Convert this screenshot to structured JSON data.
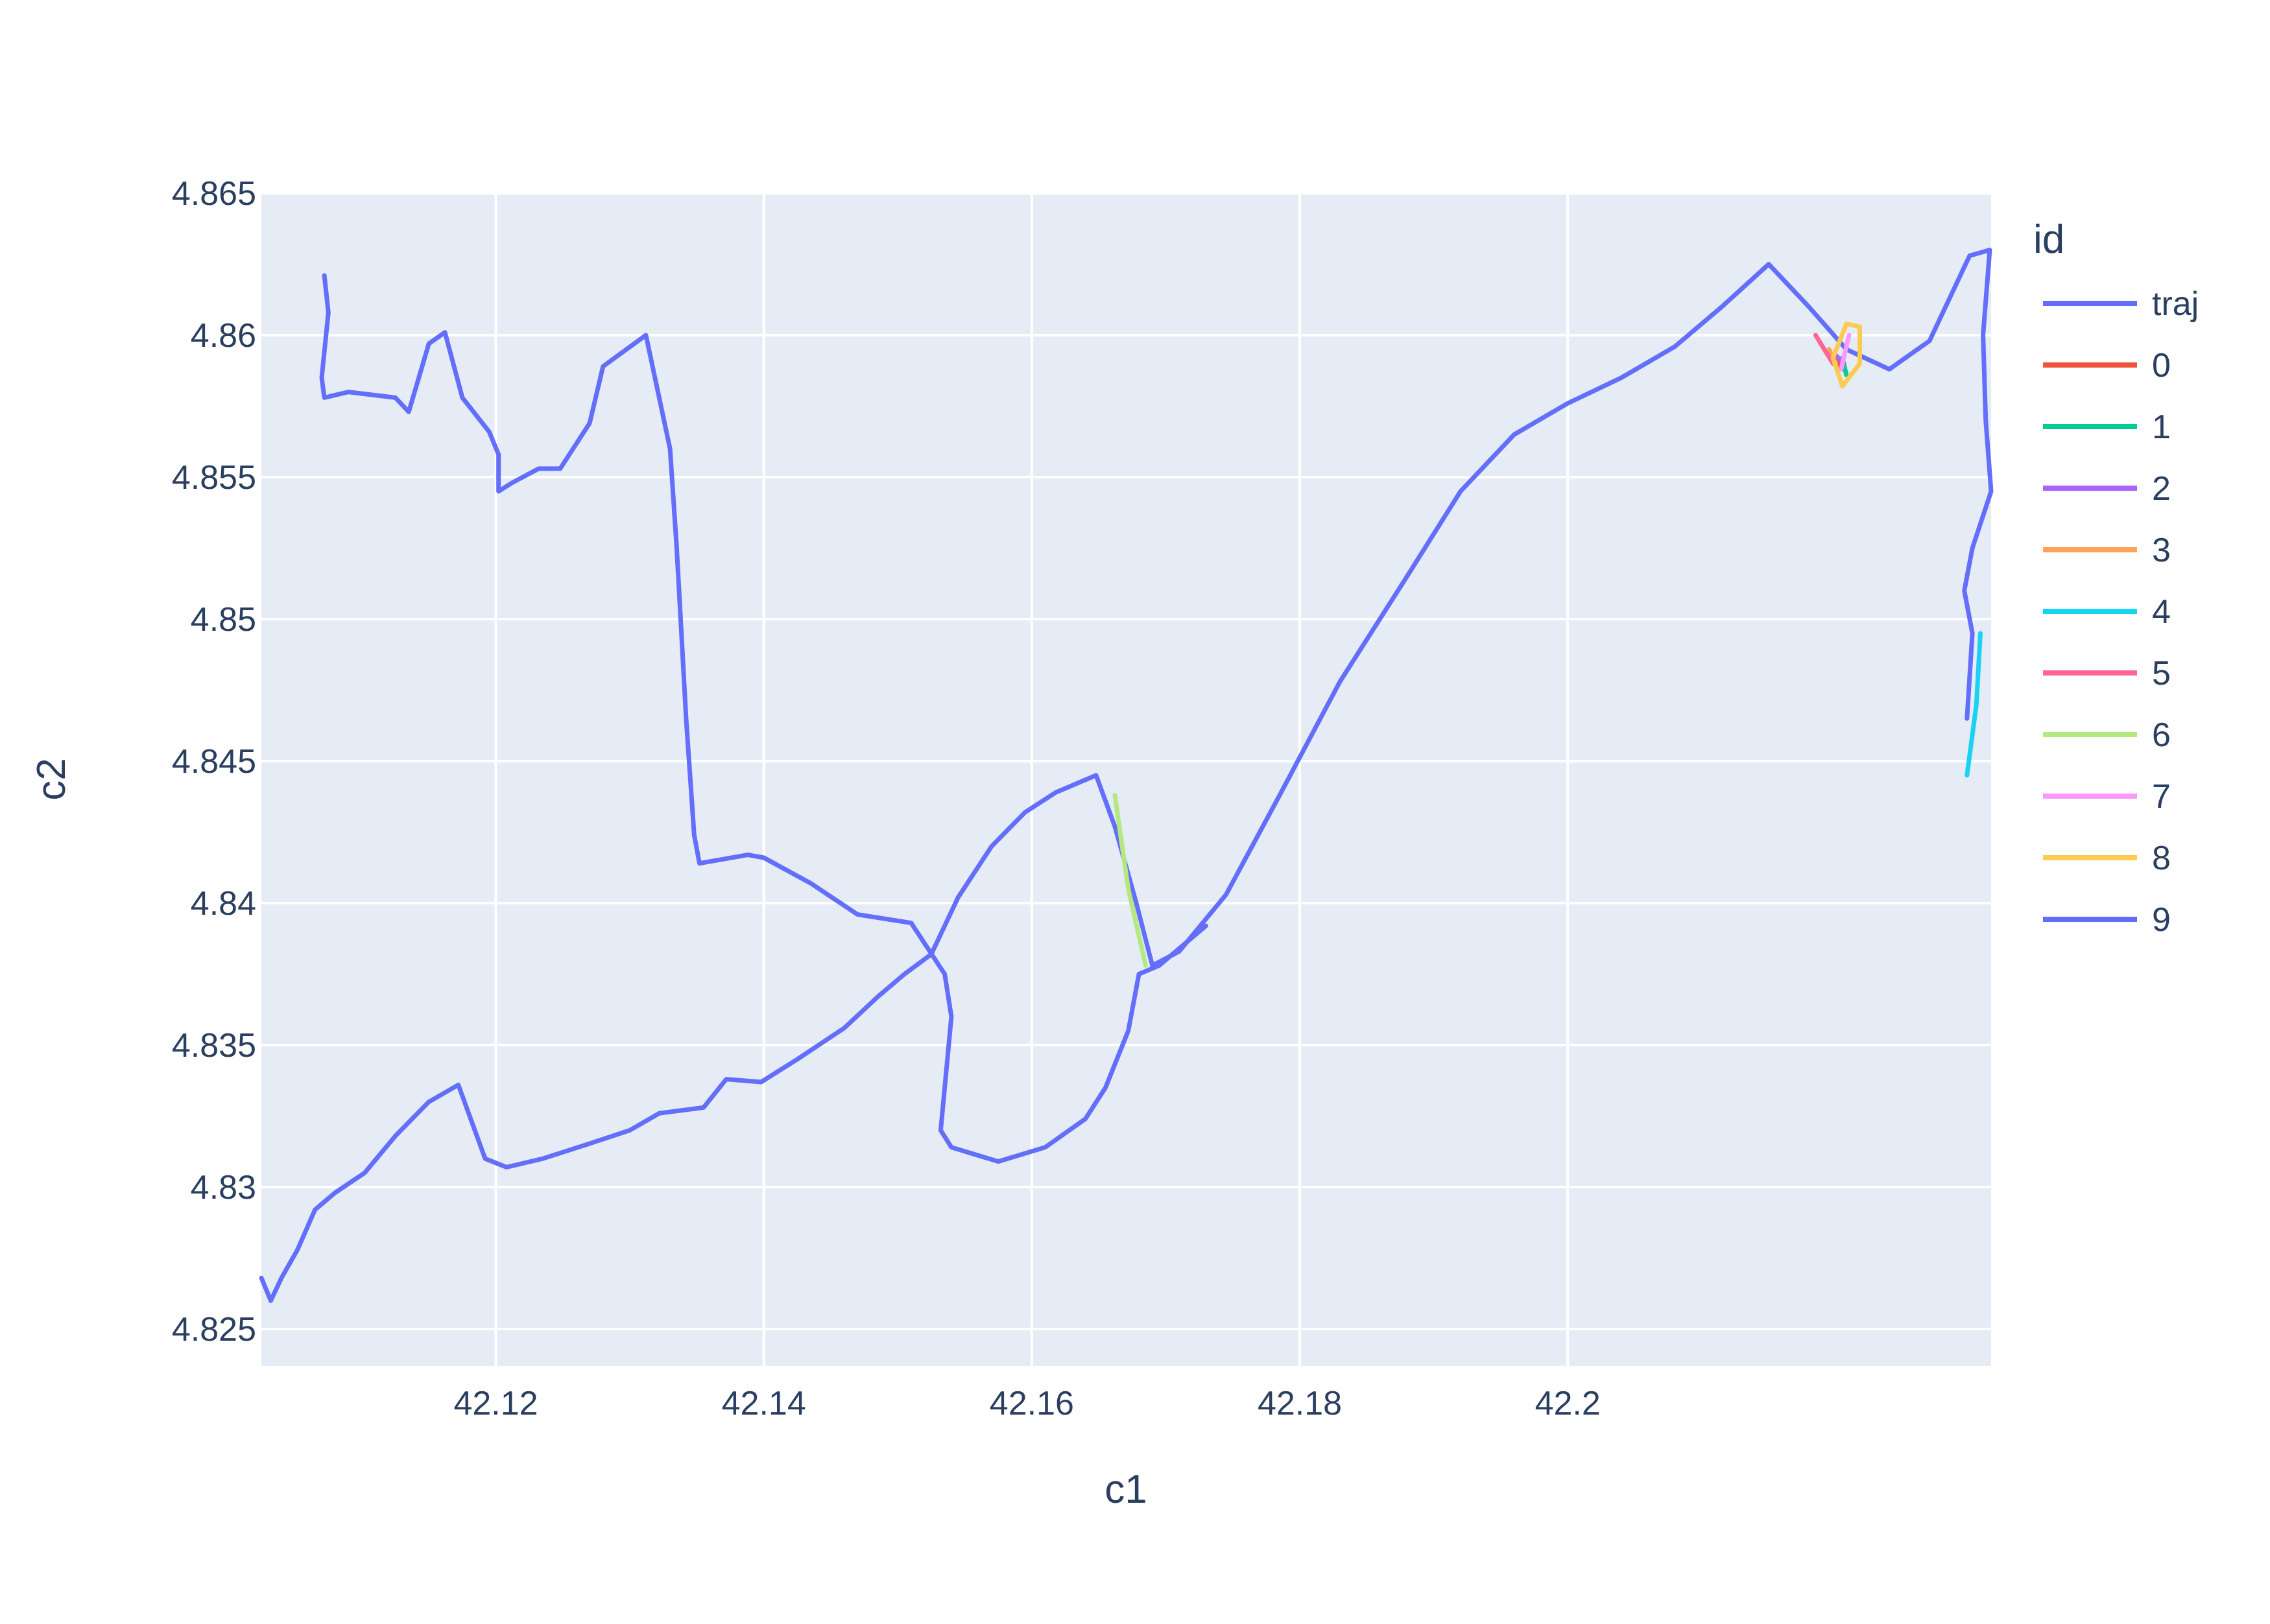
{
  "chart_data": {
    "type": "line",
    "title": "",
    "xlabel": "c1",
    "ylabel": "c2",
    "xlim": [
      42.1025,
      42.2316
    ],
    "ylim": [
      4.8237,
      4.865
    ],
    "x_ticks": [
      42.12,
      42.14,
      42.16,
      42.18,
      42.2
    ],
    "x_tick_labels": [
      "42.12",
      "42.14",
      "42.16",
      "42.18",
      "42.2"
    ],
    "y_ticks": [
      4.825,
      4.83,
      4.835,
      4.84,
      4.845,
      4.85,
      4.855,
      4.86,
      4.865
    ],
    "y_tick_labels": [
      "4.825",
      "4.83",
      "4.835",
      "4.84",
      "4.845",
      "4.85",
      "4.855",
      "4.86",
      "4.865"
    ],
    "grid": true,
    "legend_title": "id",
    "legend_position": "right",
    "colors": {
      "plot_bg": "#e5ecf6",
      "grid": "#ffffff",
      "text": "#2a3f5f"
    },
    "series": [
      {
        "name": "traj",
        "color": "#636efa",
        "points": [
          [
            42.1025,
            4.8268
          ],
          [
            42.1032,
            4.826
          ],
          [
            42.104,
            4.8268
          ],
          [
            42.1052,
            4.8278
          ],
          [
            42.1065,
            4.8292
          ],
          [
            42.108,
            4.8298
          ],
          [
            42.1102,
            4.8305
          ],
          [
            42.1125,
            4.8318
          ],
          [
            42.115,
            4.833
          ],
          [
            42.1172,
            4.8336
          ],
          [
            42.1192,
            4.831
          ],
          [
            42.1208,
            4.8307
          ],
          [
            42.1235,
            4.831
          ],
          [
            42.1268,
            4.8315
          ],
          [
            42.13,
            4.832
          ],
          [
            42.1322,
            4.8326
          ],
          [
            42.1355,
            4.8328
          ],
          [
            42.1372,
            4.8338
          ],
          [
            42.1398,
            4.8337
          ],
          [
            42.1425,
            4.8345
          ],
          [
            42.146,
            4.8356
          ],
          [
            42.1485,
            4.8367
          ],
          [
            42.1505,
            4.8375
          ],
          [
            42.1525,
            4.8382
          ],
          [
            42.1545,
            4.8402
          ],
          [
            42.157,
            4.842
          ],
          [
            42.1595,
            4.8432
          ],
          [
            42.1618,
            4.8439
          ],
          [
            42.1648,
            4.8445
          ],
          [
            42.1662,
            4.8427
          ],
          [
            42.1678,
            4.84
          ],
          [
            42.169,
            4.8378
          ],
          [
            42.171,
            4.8383
          ],
          [
            42.1745,
            4.8403
          ],
          [
            42.1785,
            4.8438
          ],
          [
            42.183,
            4.8478
          ],
          [
            42.188,
            4.8515
          ],
          [
            42.192,
            4.8545
          ],
          [
            42.196,
            4.8565
          ],
          [
            42.2,
            4.8576
          ],
          [
            42.204,
            4.8585
          ],
          [
            42.208,
            4.8596
          ],
          [
            42.2115,
            4.861
          ],
          [
            42.215,
            4.8625
          ],
          [
            42.218,
            4.861
          ],
          [
            42.2208,
            4.8595
          ],
          [
            42.224,
            4.8588
          ],
          [
            42.227,
            4.8598
          ],
          [
            42.23,
            4.8628
          ],
          [
            42.2315,
            4.863
          ],
          [
            42.231,
            4.86
          ],
          [
            42.2312,
            4.857
          ],
          [
            42.2316,
            4.8545
          ],
          [
            42.2302,
            4.8525
          ],
          [
            42.2296,
            4.851
          ],
          [
            42.2302,
            4.8495
          ],
          [
            42.2298,
            4.8465
          ]
        ]
      },
      {
        "name": "0",
        "color": "#ef553b",
        "points": [
          [
            42.2195,
            4.8594
          ],
          [
            42.2205,
            4.8588
          ]
        ]
      },
      {
        "name": "1",
        "color": "#00cc96",
        "points": [
          [
            42.2205,
            4.8592
          ],
          [
            42.2208,
            4.8586
          ]
        ]
      },
      {
        "name": "2",
        "color": "#ab63fa",
        "points": [
          [
            42.22,
            4.8593
          ],
          [
            42.2206,
            4.859
          ]
        ]
      },
      {
        "name": "3",
        "color": "#ffa15a",
        "points": [
          [
            42.2195,
            4.8595
          ],
          [
            42.22,
            4.859
          ]
        ]
      },
      {
        "name": "4",
        "color": "#19d3f3",
        "points": [
          [
            42.2298,
            4.8445
          ],
          [
            42.2305,
            4.847
          ],
          [
            42.2308,
            4.8495
          ]
        ]
      },
      {
        "name": "5",
        "color": "#ff6692",
        "points": [
          [
            42.2185,
            4.86
          ],
          [
            42.2198,
            4.859
          ]
        ]
      },
      {
        "name": "6",
        "color": "#b6e880",
        "points": [
          [
            42.1662,
            4.8438
          ],
          [
            42.1672,
            4.8405
          ],
          [
            42.1685,
            4.8378
          ]
        ]
      },
      {
        "name": "7",
        "color": "#ff97ff",
        "points": [
          [
            42.2204,
            4.8588
          ],
          [
            42.221,
            4.86
          ]
        ]
      },
      {
        "name": "8",
        "color": "#fecb52",
        "points": [
          [
            42.2205,
            4.8582
          ],
          [
            42.2198,
            4.8592
          ],
          [
            42.2208,
            4.8604
          ],
          [
            42.2218,
            4.8603
          ],
          [
            42.2218,
            4.859
          ],
          [
            42.2205,
            4.8582
          ]
        ]
      },
      {
        "name": "9",
        "color": "#636efa",
        "points": [
          [
            42.1072,
            4.8621
          ],
          [
            42.1075,
            4.8608
          ],
          [
            42.107,
            4.8585
          ],
          [
            42.1072,
            4.8578
          ],
          [
            42.109,
            4.858
          ],
          [
            42.1125,
            4.8578
          ],
          [
            42.1135,
            4.8573
          ],
          [
            42.115,
            4.8597
          ],
          [
            42.1162,
            4.8601
          ],
          [
            42.1175,
            4.8578
          ],
          [
            42.1195,
            4.8566
          ],
          [
            42.1202,
            4.8558
          ],
          [
            42.1202,
            4.8545
          ],
          [
            42.1212,
            4.8548
          ],
          [
            42.1232,
            4.8553
          ],
          [
            42.1248,
            4.8553
          ],
          [
            42.127,
            4.8569
          ],
          [
            42.128,
            4.8589
          ],
          [
            42.1312,
            4.86
          ],
          [
            42.133,
            4.856
          ],
          [
            42.1335,
            4.8525
          ],
          [
            42.1342,
            4.8465
          ],
          [
            42.1348,
            4.8424
          ],
          [
            42.1352,
            4.8414
          ],
          [
            42.1388,
            4.8417
          ],
          [
            42.14,
            4.8416
          ],
          [
            42.1435,
            4.8407
          ],
          [
            42.147,
            4.8396
          ],
          [
            42.151,
            4.8393
          ],
          [
            42.1535,
            4.8375
          ],
          [
            42.154,
            4.836
          ],
          [
            42.1532,
            4.832
          ],
          [
            42.154,
            4.8314
          ],
          [
            42.1575,
            4.8309
          ],
          [
            42.161,
            4.8314
          ],
          [
            42.164,
            4.8324
          ],
          [
            42.1655,
            4.8335
          ],
          [
            42.1672,
            4.8355
          ],
          [
            42.168,
            4.8375
          ],
          [
            42.1695,
            4.8378
          ],
          [
            42.173,
            4.8392
          ]
        ]
      }
    ]
  }
}
